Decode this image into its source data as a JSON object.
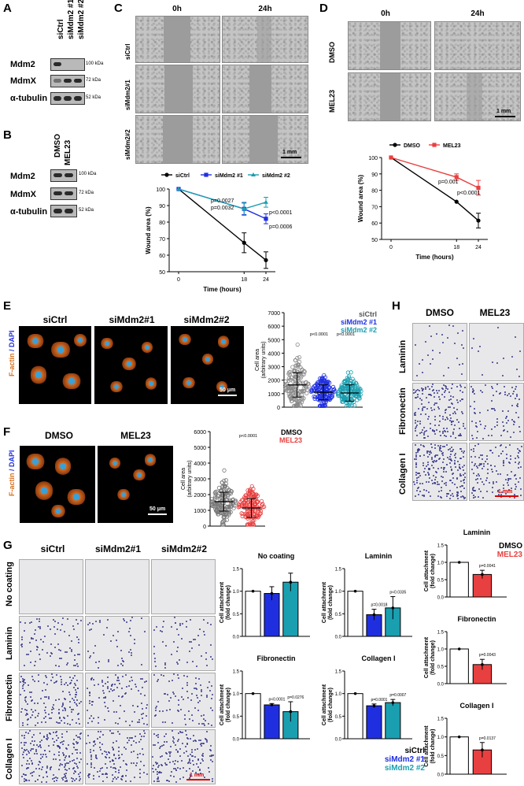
{
  "panels": {
    "A": "A",
    "B": "B",
    "C": "C",
    "D": "D",
    "E": "E",
    "F": "F",
    "G": "G",
    "H": "H"
  },
  "panelA": {
    "cols": [
      "siCtrl",
      "siMdm2 #1",
      "siMdm2 #2"
    ],
    "rows": [
      {
        "name": "Mdm2",
        "kda": "100 kDa"
      },
      {
        "name": "MdmX",
        "kda": "72 kDa"
      },
      {
        "name": "α-tubulin",
        "kda": "52 kDa"
      }
    ]
  },
  "panelB": {
    "cols": [
      "DMSO",
      "MEL23"
    ],
    "rows": [
      {
        "name": "Mdm2",
        "kda": "100 kDa"
      },
      {
        "name": "MdmX",
        "kda": "72 kDa"
      },
      {
        "name": "α-tubulin",
        "kda": "52 kDa"
      }
    ]
  },
  "panelC": {
    "time_cols": [
      "0h",
      "24h"
    ],
    "rows": [
      "siCtrl",
      "siMdm2#1",
      "siMdm2#2"
    ],
    "scale": "1 mm"
  },
  "panelD": {
    "time_cols": [
      "0h",
      "24h"
    ],
    "rows": [
      "DMSO",
      "MEL23"
    ],
    "scale": "1 mm"
  },
  "panelE": {
    "cols": [
      "siCtrl",
      "siMdm2#1",
      "siMdm2#2"
    ],
    "stain_label": [
      "F-actin",
      "/ DAPI"
    ],
    "scale": "50 μm",
    "legend": [
      "siCtrl",
      "siMdm2 #1",
      "siMdm2 #2"
    ],
    "pvals": [
      "p<0.0001",
      "p<0.0001"
    ]
  },
  "panelF": {
    "cols": [
      "DMSO",
      "MEL23"
    ],
    "stain_label": [
      "F-actin",
      "/ DAPI"
    ],
    "scale": "50 μm",
    "legend": [
      "DMSO",
      "MEL23"
    ],
    "pval": "p<0.0001"
  },
  "panelG": {
    "cols": [
      "siCtrl",
      "siMdm2#1",
      "siMdm2#2"
    ],
    "rows": [
      "No coating",
      "Laminin",
      "Fibronectin",
      "Collagen I"
    ],
    "legend": [
      "siCtrl",
      "siMdm2 #1",
      "siMdm2 #2"
    ],
    "scale": "1 mm"
  },
  "panelH": {
    "cols": [
      "DMSO",
      "MEL23"
    ],
    "rows": [
      "Laminin",
      "Fibronectin",
      "Collagen I"
    ],
    "legend": [
      "DMSO",
      "MEL23"
    ],
    "scale": "1 mm"
  },
  "colors": {
    "black": "#000000",
    "blue": "#1f2fe0",
    "teal": "#1a9fb0",
    "red": "#e84040",
    "orange": "#d8701c"
  },
  "chart_data": [
    {
      "id": "C-line",
      "type": "line",
      "x": [
        0,
        18,
        24
      ],
      "xlabel": "Time (hours)",
      "ylabel": "Wound area (%)",
      "ylim": [
        50,
        100
      ],
      "yticks": [
        50,
        60,
        70,
        80,
        90,
        100
      ],
      "series": [
        {
          "name": "siCtrl",
          "values": [
            100,
            67.5,
            57
          ],
          "err": [
            0,
            6,
            5
          ]
        },
        {
          "name": "siMdm2 #1",
          "values": [
            100,
            88,
            82
          ],
          "err": [
            0,
            3.5,
            3
          ]
        },
        {
          "name": "siMdm2 #2",
          "values": [
            100,
            88,
            92
          ],
          "err": [
            0,
            4,
            3
          ]
        }
      ],
      "annotations": [
        "p=0.0027",
        "p=0.0032",
        "p<0.0001",
        "p=0.0006"
      ]
    },
    {
      "id": "D-line",
      "type": "line",
      "x": [
        0,
        18,
        24
      ],
      "xlabel": "Time (hours)",
      "ylabel": "Wound area (%)",
      "ylim": [
        50,
        100
      ],
      "yticks": [
        50,
        60,
        70,
        80,
        90,
        100
      ],
      "series": [
        {
          "name": "DMSO",
          "values": [
            100,
            73,
            61.5
          ],
          "err": [
            0,
            0,
            4.5
          ]
        },
        {
          "name": "MEL23",
          "values": [
            100,
            88,
            81.5
          ],
          "err": [
            0,
            2,
            4.5
          ]
        }
      ],
      "annotations": [
        "p=0.001",
        "p<0.0001"
      ]
    },
    {
      "id": "E-scatter",
      "type": "scatter",
      "categories": [
        "siCtrl",
        "siMdm2 #1",
        "siMdm2 #2"
      ],
      "ylabel": "Cell area\n(arbitrary units)",
      "yticks": [
        0,
        1000,
        2000,
        3000,
        4000,
        5000,
        6000,
        7000
      ],
      "ylim": [
        0,
        7000
      ],
      "series": [
        {
          "name": "siCtrl",
          "mean": 1650,
          "sd": 900
        },
        {
          "name": "siMdm2 #1",
          "mean": 1100,
          "sd": 550
        },
        {
          "name": "siMdm2 #2",
          "mean": 1050,
          "sd": 600
        }
      ]
    },
    {
      "id": "F-scatter",
      "type": "scatter",
      "categories": [
        "DMSO",
        "MEL23"
      ],
      "ylabel": "Cell area\n(arbitrary units)",
      "yticks": [
        0,
        1000,
        2000,
        3000,
        4000,
        5000,
        6000
      ],
      "ylim": [
        0,
        6000
      ],
      "series": [
        {
          "name": "DMSO",
          "mean": 1550,
          "sd": 600
        },
        {
          "name": "MEL23",
          "mean": 1150,
          "sd": 600
        }
      ]
    },
    {
      "id": "G-nocoat",
      "type": "bar",
      "title": "No coating",
      "categories": [
        "siCtrl",
        "siMdm2 #1",
        "siMdm2 #2"
      ],
      "values": [
        1.0,
        0.95,
        1.2
      ],
      "err": [
        0,
        0.15,
        0.2
      ],
      "ylabel": "Cell attachment\n(fold change)",
      "ylim": [
        0,
        1.5
      ],
      "yticks": [
        0.0,
        0.5,
        1.0,
        1.5
      ],
      "annotations": []
    },
    {
      "id": "G-laminin",
      "type": "bar",
      "title": "Laminin",
      "categories": [
        "siCtrl",
        "siMdm2 #1",
        "siMdm2 #2"
      ],
      "values": [
        1.0,
        0.48,
        0.63
      ],
      "err": [
        0,
        0.12,
        0.25
      ],
      "ylabel": "Cell attachment\n(fold change)",
      "ylim": [
        0,
        1.5
      ],
      "yticks": [
        0.0,
        0.5,
        1.0,
        1.5
      ],
      "annotations": [
        "p=0.0018",
        "p<0.0335"
      ]
    },
    {
      "id": "G-fibronectin",
      "type": "bar",
      "title": "Fibronectin",
      "categories": [
        "siCtrl",
        "siMdm2 #1",
        "siMdm2 #2"
      ],
      "values": [
        1.0,
        0.75,
        0.6
      ],
      "err": [
        0,
        0.03,
        0.22
      ],
      "ylabel": "Cell attachment\n(fold change)",
      "ylim": [
        0,
        1.5
      ],
      "yticks": [
        0.0,
        0.5,
        1.0,
        1.5
      ],
      "annotations": [
        "p<0.0001",
        "p=0.0276"
      ]
    },
    {
      "id": "G-collagen",
      "type": "bar",
      "title": "Collagen I",
      "categories": [
        "siCtrl",
        "siMdm2 #1",
        "siMdm2 #2"
      ],
      "values": [
        1.0,
        0.73,
        0.8
      ],
      "err": [
        0,
        0.04,
        0.07
      ],
      "ylabel": "Cell attachment\n(fold change)",
      "ylim": [
        0,
        1.5
      ],
      "yticks": [
        0.0,
        0.5,
        1.0,
        1.5
      ],
      "annotations": [
        "p=0.0001",
        "p=0.0007"
      ]
    },
    {
      "id": "H-laminin",
      "type": "bar",
      "title": "Laminin",
      "categories": [
        "DMSO",
        "MEL23"
      ],
      "values": [
        1.0,
        0.65
      ],
      "err": [
        0,
        0.12
      ],
      "ylabel": "Cell attachment\n(fold change)",
      "ylim": [
        0,
        1.5
      ],
      "yticks": [
        0.0,
        0.5,
        1.0,
        1.5
      ],
      "annotations": [
        "p=0.0041"
      ]
    },
    {
      "id": "H-fibronectin",
      "type": "bar",
      "title": "Fibronectin",
      "categories": [
        "DMSO",
        "MEL23"
      ],
      "values": [
        1.0,
        0.55
      ],
      "err": [
        0,
        0.15
      ],
      "ylabel": "Cell attachment\n(fold change)",
      "ylim": [
        0,
        1.5
      ],
      "yticks": [
        0.0,
        0.5,
        1.0,
        1.5
      ],
      "annotations": [
        "p=0.0043"
      ]
    },
    {
      "id": "H-collagen",
      "type": "bar",
      "title": "Collagen I",
      "categories": [
        "DMSO",
        "MEL23"
      ],
      "values": [
        1.0,
        0.65
      ],
      "err": [
        0,
        0.2
      ],
      "ylabel": "Cell attachment\n(fold change)",
      "ylim": [
        0,
        1.5
      ],
      "yticks": [
        0.0,
        0.5,
        1.0,
        1.5
      ],
      "annotations": [
        "p=0.0137"
      ]
    }
  ]
}
